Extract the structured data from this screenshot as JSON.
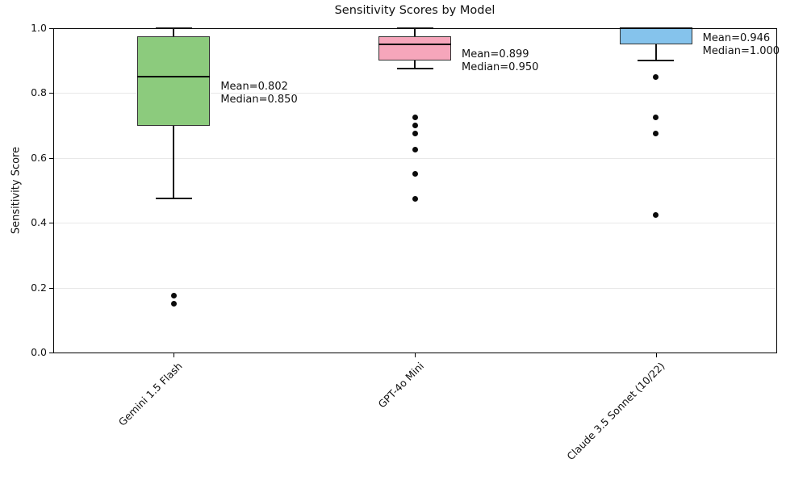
{
  "figure": {
    "title": "Sensitivity Scores by Model",
    "ylabel": "Sensitivity Score"
  },
  "chart_data": {
    "type": "box",
    "title": "Sensitivity Scores by Model",
    "xlabel": "",
    "ylabel": "Sensitivity Score",
    "ylim": [
      0.0,
      1.0
    ],
    "yticks": [
      0.0,
      0.2,
      0.4,
      0.6,
      0.8,
      1.0
    ],
    "grid": "horizontal",
    "legend": "none",
    "categories": [
      "Gemini 1.5 Flash",
      "GPT-4o Mini",
      "Claude 3.5 Sonnet (10/22)"
    ],
    "series": [
      {
        "name": "Gemini 1.5 Flash",
        "box_color": "#8ccb7d",
        "whisker_low": 0.475,
        "q1": 0.7,
        "median": 0.85,
        "q3": 0.975,
        "whisker_high": 1.0,
        "mean": 0.802,
        "outliers": [
          0.175,
          0.15
        ],
        "annotation": [
          "Mean=0.802",
          "Median=0.850"
        ]
      },
      {
        "name": "GPT-4o Mini",
        "box_color": "#f6a6bb",
        "whisker_low": 0.875,
        "q1": 0.9,
        "median": 0.95,
        "q3": 0.975,
        "whisker_high": 1.0,
        "mean": 0.899,
        "outliers": [
          0.725,
          0.7,
          0.675,
          0.625,
          0.55,
          0.475
        ],
        "annotation": [
          "Mean=0.899",
          "Median=0.950"
        ]
      },
      {
        "name": "Claude 3.5 Sonnet (10/22)",
        "box_color": "#85c3ec",
        "whisker_low": 0.9,
        "q1": 0.95,
        "median": 1.0,
        "q3": 1.0,
        "whisker_high": 1.0,
        "mean": 0.946,
        "outliers": [
          0.85,
          0.725,
          0.675,
          0.425
        ],
        "annotation": [
          "Mean=0.946",
          "Median=1.000"
        ]
      }
    ],
    "colors": {
      "line": "#111111",
      "median_line": "#000000",
      "grid": "#e8e8e8",
      "text": "#111111",
      "background": "#ffffff"
    }
  }
}
